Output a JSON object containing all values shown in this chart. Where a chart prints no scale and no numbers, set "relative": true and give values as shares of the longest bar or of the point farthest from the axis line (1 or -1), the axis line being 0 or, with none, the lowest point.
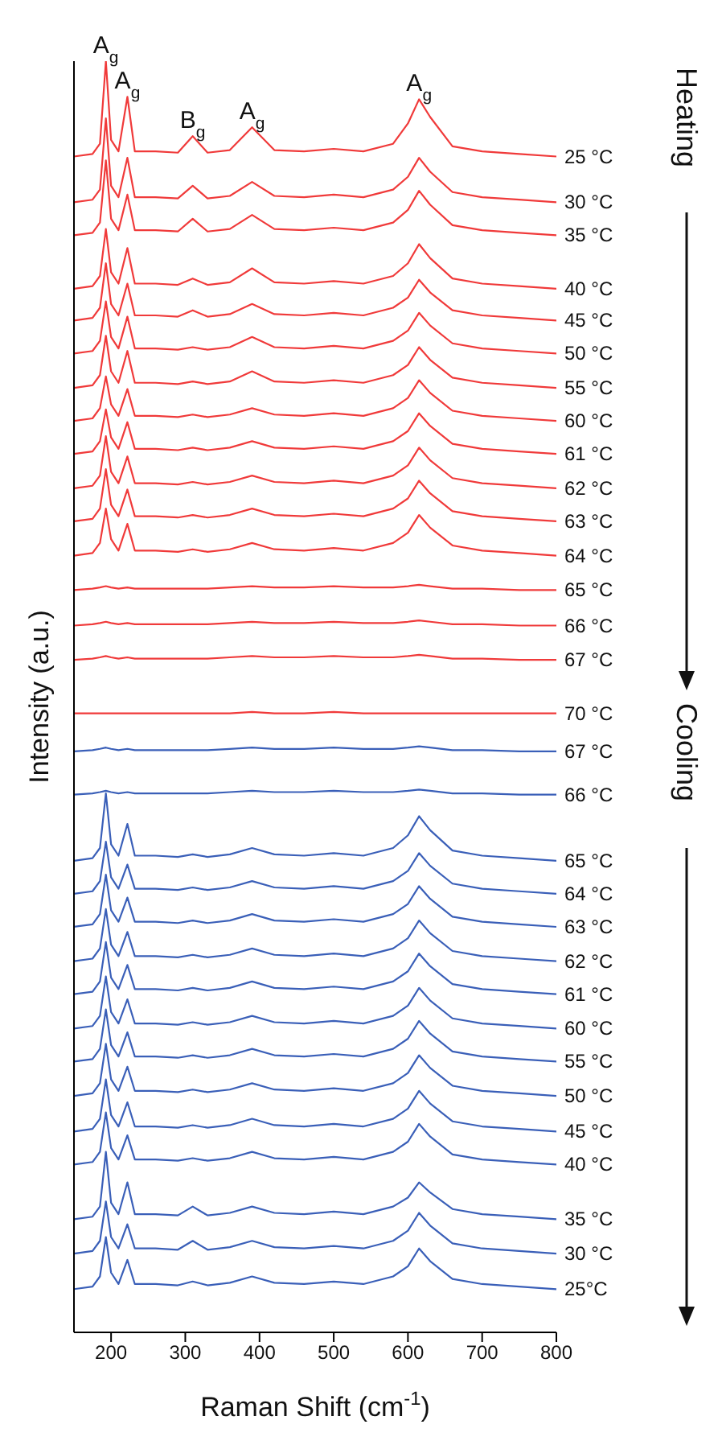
{
  "chart_data": {
    "type": "line",
    "relative": true,
    "xlabel": "Raman Shift (cm$^{-1}$)",
    "ylabel": "Intensity (a.u.)",
    "xlim": [
      150,
      800
    ],
    "xticks": [
      200,
      300,
      400,
      500,
      600,
      700,
      800
    ],
    "legend": false,
    "grid": false,
    "marker": "none",
    "line_style": "solid",
    "x": [
      150,
      175,
      185,
      193,
      200,
      210,
      222,
      232,
      260,
      290,
      310,
      330,
      360,
      390,
      420,
      460,
      500,
      540,
      580,
      600,
      615,
      630,
      660,
      700,
      750,
      800
    ],
    "annotations": [
      {
        "text": "A$_{g}$",
        "x": 193,
        "y": 1.0
      },
      {
        "text": "A$_{g}$",
        "x": 222,
        "y": 0.972
      },
      {
        "text": "B$_{g}$",
        "x": 310,
        "y": 0.941
      },
      {
        "text": "A$_{g}$",
        "x": 390,
        "y": 0.948
      },
      {
        "text": "A$_{g}$",
        "x": 615,
        "y": 0.97
      },
      "Heating",
      "Cooling"
    ],
    "series": [
      {
        "name": "25 °C",
        "color": "#f03a3a",
        "values": [
          0.925,
          0.927,
          0.935,
          1.0,
          0.938,
          0.929,
          0.972,
          0.929,
          0.929,
          0.928,
          0.941,
          0.928,
          0.93,
          0.948,
          0.93,
          0.929,
          0.931,
          0.929,
          0.935,
          0.951,
          0.97,
          0.956,
          0.933,
          0.929,
          0.927,
          0.925
        ]
      },
      {
        "name": "30 °C",
        "color": "#f03a3a",
        "values": [
          0.889,
          0.891,
          0.899,
          0.955,
          0.902,
          0.893,
          0.924,
          0.893,
          0.893,
          0.892,
          0.902,
          0.892,
          0.894,
          0.905,
          0.894,
          0.893,
          0.895,
          0.893,
          0.899,
          0.909,
          0.924,
          0.913,
          0.897,
          0.893,
          0.891,
          0.889
        ]
      },
      {
        "name": "35 °C",
        "color": "#f03a3a",
        "values": [
          0.863,
          0.865,
          0.873,
          0.922,
          0.876,
          0.867,
          0.895,
          0.867,
          0.867,
          0.866,
          0.876,
          0.866,
          0.868,
          0.879,
          0.868,
          0.867,
          0.869,
          0.867,
          0.873,
          0.883,
          0.898,
          0.887,
          0.871,
          0.867,
          0.865,
          0.863
        ]
      },
      {
        "name": "40 °C",
        "color": "#f03a3a",
        "values": [
          0.821,
          0.823,
          0.831,
          0.868,
          0.834,
          0.825,
          0.853,
          0.825,
          0.825,
          0.824,
          0.829,
          0.824,
          0.826,
          0.837,
          0.826,
          0.825,
          0.827,
          0.825,
          0.831,
          0.841,
          0.856,
          0.845,
          0.829,
          0.825,
          0.823,
          0.821
        ]
      },
      {
        "name": "45 °C",
        "color": "#f03a3a",
        "values": [
          0.796,
          0.798,
          0.806,
          0.841,
          0.809,
          0.8,
          0.825,
          0.8,
          0.8,
          0.799,
          0.804,
          0.799,
          0.801,
          0.809,
          0.801,
          0.8,
          0.802,
          0.8,
          0.806,
          0.814,
          0.828,
          0.818,
          0.804,
          0.8,
          0.798,
          0.796
        ]
      },
      {
        "name": "50 °C",
        "color": "#f03a3a",
        "values": [
          0.77,
          0.772,
          0.78,
          0.811,
          0.783,
          0.774,
          0.799,
          0.774,
          0.774,
          0.773,
          0.775,
          0.773,
          0.775,
          0.783,
          0.775,
          0.774,
          0.776,
          0.774,
          0.78,
          0.788,
          0.802,
          0.792,
          0.778,
          0.774,
          0.772,
          0.77
        ]
      },
      {
        "name": "55 °C",
        "color": "#f03a3a",
        "values": [
          0.743,
          0.745,
          0.753,
          0.784,
          0.756,
          0.747,
          0.772,
          0.747,
          0.747,
          0.746,
          0.748,
          0.746,
          0.748,
          0.756,
          0.748,
          0.747,
          0.749,
          0.747,
          0.753,
          0.761,
          0.775,
          0.765,
          0.751,
          0.747,
          0.745,
          0.743
        ]
      },
      {
        "name": "60 °C",
        "color": "#f03a3a",
        "values": [
          0.717,
          0.719,
          0.727,
          0.752,
          0.73,
          0.721,
          0.742,
          0.721,
          0.721,
          0.72,
          0.722,
          0.72,
          0.722,
          0.727,
          0.722,
          0.721,
          0.723,
          0.721,
          0.727,
          0.735,
          0.749,
          0.739,
          0.725,
          0.721,
          0.719,
          0.717
        ]
      },
      {
        "name": "61 °C",
        "color": "#f03a3a",
        "values": [
          0.691,
          0.693,
          0.701,
          0.726,
          0.704,
          0.695,
          0.716,
          0.695,
          0.695,
          0.694,
          0.696,
          0.694,
          0.696,
          0.701,
          0.696,
          0.695,
          0.697,
          0.695,
          0.701,
          0.709,
          0.723,
          0.713,
          0.699,
          0.695,
          0.693,
          0.691
        ]
      },
      {
        "name": "62 °C",
        "color": "#f03a3a",
        "values": [
          0.664,
          0.666,
          0.674,
          0.705,
          0.677,
          0.668,
          0.689,
          0.668,
          0.668,
          0.667,
          0.669,
          0.667,
          0.669,
          0.674,
          0.669,
          0.668,
          0.67,
          0.668,
          0.674,
          0.682,
          0.696,
          0.686,
          0.672,
          0.668,
          0.666,
          0.664
        ]
      },
      {
        "name": "63 °C",
        "color": "#f03a3a",
        "values": [
          0.638,
          0.64,
          0.648,
          0.679,
          0.651,
          0.642,
          0.663,
          0.642,
          0.642,
          0.641,
          0.643,
          0.641,
          0.643,
          0.648,
          0.643,
          0.642,
          0.644,
          0.642,
          0.648,
          0.656,
          0.67,
          0.66,
          0.646,
          0.642,
          0.64,
          0.638
        ]
      },
      {
        "name": "64 °C",
        "color": "#f03a3a",
        "values": [
          0.611,
          0.613,
          0.621,
          0.648,
          0.624,
          0.615,
          0.636,
          0.615,
          0.615,
          0.614,
          0.616,
          0.614,
          0.616,
          0.621,
          0.616,
          0.615,
          0.617,
          0.615,
          0.621,
          0.629,
          0.643,
          0.633,
          0.619,
          0.615,
          0.613,
          0.611
        ]
      },
      {
        "name": "65 °C",
        "color": "#f03a3a",
        "values": [
          0.584,
          0.585,
          0.586,
          0.587,
          0.586,
          0.585,
          0.586,
          0.585,
          0.585,
          0.585,
          0.585,
          0.585,
          0.586,
          0.587,
          0.586,
          0.586,
          0.587,
          0.586,
          0.586,
          0.587,
          0.588,
          0.587,
          0.585,
          0.585,
          0.584,
          0.584
        ]
      },
      {
        "name": "66 °C",
        "color": "#f03a3a",
        "values": [
          0.556,
          0.557,
          0.558,
          0.559,
          0.558,
          0.557,
          0.558,
          0.557,
          0.557,
          0.557,
          0.557,
          0.557,
          0.558,
          0.559,
          0.558,
          0.558,
          0.559,
          0.558,
          0.558,
          0.559,
          0.56,
          0.559,
          0.557,
          0.557,
          0.556,
          0.556
        ]
      },
      {
        "name": "67 °C",
        "color": "#f03a3a",
        "values": [
          0.529,
          0.53,
          0.531,
          0.532,
          0.531,
          0.53,
          0.531,
          0.53,
          0.53,
          0.53,
          0.53,
          0.53,
          0.531,
          0.532,
          0.531,
          0.531,
          0.532,
          0.531,
          0.531,
          0.532,
          0.533,
          0.532,
          0.53,
          0.53,
          0.529,
          0.529
        ]
      },
      {
        "name": "70 °C",
        "color": "#f03a3a",
        "values": [
          0.487,
          0.487,
          0.487,
          0.487,
          0.487,
          0.487,
          0.487,
          0.487,
          0.487,
          0.487,
          0.487,
          0.487,
          0.487,
          0.488,
          0.487,
          0.487,
          0.488,
          0.487,
          0.487,
          0.487,
          0.487,
          0.487,
          0.487,
          0.487,
          0.487,
          0.487
        ]
      },
      {
        "name": "67 °C",
        "color": "#3a5fb8",
        "values": [
          0.457,
          0.458,
          0.459,
          0.46,
          0.459,
          0.458,
          0.459,
          0.458,
          0.458,
          0.458,
          0.458,
          0.458,
          0.459,
          0.46,
          0.459,
          0.459,
          0.46,
          0.459,
          0.459,
          0.46,
          0.461,
          0.46,
          0.458,
          0.458,
          0.457,
          0.457
        ]
      },
      {
        "name": "66 °C",
        "color": "#3a5fb8",
        "values": [
          0.423,
          0.424,
          0.425,
          0.426,
          0.425,
          0.424,
          0.425,
          0.424,
          0.424,
          0.424,
          0.424,
          0.424,
          0.425,
          0.426,
          0.425,
          0.425,
          0.426,
          0.425,
          0.425,
          0.426,
          0.427,
          0.426,
          0.424,
          0.424,
          0.423,
          0.423
        ]
      },
      {
        "name": "65 °C",
        "color": "#3a5fb8",
        "values": [
          0.371,
          0.373,
          0.381,
          0.424,
          0.384,
          0.375,
          0.4,
          0.375,
          0.375,
          0.374,
          0.376,
          0.374,
          0.376,
          0.381,
          0.376,
          0.375,
          0.377,
          0.375,
          0.381,
          0.391,
          0.406,
          0.395,
          0.379,
          0.375,
          0.373,
          0.371
        ]
      },
      {
        "name": "64 °C",
        "color": "#3a5fb8",
        "values": [
          0.345,
          0.347,
          0.355,
          0.386,
          0.358,
          0.349,
          0.368,
          0.349,
          0.349,
          0.348,
          0.35,
          0.348,
          0.35,
          0.355,
          0.35,
          0.349,
          0.351,
          0.349,
          0.355,
          0.363,
          0.377,
          0.367,
          0.353,
          0.349,
          0.347,
          0.345
        ]
      },
      {
        "name": "63 °C",
        "color": "#3a5fb8",
        "values": [
          0.319,
          0.321,
          0.329,
          0.36,
          0.332,
          0.323,
          0.342,
          0.323,
          0.323,
          0.322,
          0.324,
          0.322,
          0.324,
          0.329,
          0.324,
          0.323,
          0.325,
          0.323,
          0.329,
          0.337,
          0.351,
          0.341,
          0.327,
          0.323,
          0.321,
          0.319
        ]
      },
      {
        "name": "62 °C",
        "color": "#3a5fb8",
        "values": [
          0.292,
          0.294,
          0.302,
          0.333,
          0.305,
          0.296,
          0.315,
          0.296,
          0.296,
          0.295,
          0.297,
          0.295,
          0.297,
          0.302,
          0.297,
          0.296,
          0.298,
          0.296,
          0.302,
          0.31,
          0.324,
          0.314,
          0.3,
          0.296,
          0.294,
          0.292
        ]
      },
      {
        "name": "61 °C",
        "color": "#3a5fb8",
        "values": [
          0.266,
          0.268,
          0.276,
          0.307,
          0.279,
          0.27,
          0.289,
          0.27,
          0.27,
          0.269,
          0.271,
          0.269,
          0.271,
          0.276,
          0.271,
          0.27,
          0.272,
          0.27,
          0.276,
          0.284,
          0.298,
          0.288,
          0.274,
          0.27,
          0.268,
          0.266
        ]
      },
      {
        "name": "60 °C",
        "color": "#3a5fb8",
        "values": [
          0.239,
          0.241,
          0.249,
          0.28,
          0.252,
          0.243,
          0.262,
          0.243,
          0.243,
          0.242,
          0.244,
          0.242,
          0.244,
          0.249,
          0.244,
          0.243,
          0.245,
          0.243,
          0.249,
          0.257,
          0.271,
          0.261,
          0.247,
          0.243,
          0.241,
          0.239
        ]
      },
      {
        "name": "55 °C",
        "color": "#3a5fb8",
        "values": [
          0.213,
          0.215,
          0.223,
          0.254,
          0.226,
          0.217,
          0.236,
          0.217,
          0.217,
          0.216,
          0.218,
          0.216,
          0.218,
          0.223,
          0.218,
          0.217,
          0.219,
          0.217,
          0.223,
          0.231,
          0.245,
          0.235,
          0.221,
          0.217,
          0.215,
          0.213
        ]
      },
      {
        "name": "50 °C",
        "color": "#3a5fb8",
        "values": [
          0.186,
          0.188,
          0.196,
          0.227,
          0.199,
          0.19,
          0.209,
          0.19,
          0.19,
          0.189,
          0.191,
          0.189,
          0.191,
          0.196,
          0.191,
          0.19,
          0.192,
          0.19,
          0.196,
          0.204,
          0.218,
          0.208,
          0.194,
          0.19,
          0.188,
          0.186
        ]
      },
      {
        "name": "45 °C",
        "color": "#3a5fb8",
        "values": [
          0.158,
          0.16,
          0.168,
          0.199,
          0.171,
          0.162,
          0.181,
          0.162,
          0.162,
          0.161,
          0.163,
          0.161,
          0.163,
          0.168,
          0.163,
          0.162,
          0.164,
          0.162,
          0.168,
          0.176,
          0.19,
          0.18,
          0.166,
          0.162,
          0.16,
          0.158
        ]
      },
      {
        "name": "40 °C",
        "color": "#3a5fb8",
        "values": [
          0.132,
          0.134,
          0.142,
          0.173,
          0.145,
          0.136,
          0.155,
          0.136,
          0.136,
          0.135,
          0.137,
          0.135,
          0.137,
          0.142,
          0.137,
          0.136,
          0.138,
          0.136,
          0.142,
          0.15,
          0.164,
          0.154,
          0.14,
          0.136,
          0.134,
          0.132
        ]
      },
      {
        "name": "35 °C",
        "color": "#3a5fb8",
        "values": [
          0.089,
          0.091,
          0.099,
          0.142,
          0.102,
          0.093,
          0.118,
          0.093,
          0.093,
          0.092,
          0.099,
          0.092,
          0.094,
          0.099,
          0.094,
          0.093,
          0.095,
          0.093,
          0.099,
          0.106,
          0.118,
          0.11,
          0.097,
          0.093,
          0.091,
          0.089
        ]
      },
      {
        "name": "30 °C",
        "color": "#3a5fb8",
        "values": [
          0.062,
          0.064,
          0.072,
          0.103,
          0.075,
          0.066,
          0.085,
          0.066,
          0.066,
          0.065,
          0.072,
          0.065,
          0.067,
          0.072,
          0.067,
          0.066,
          0.068,
          0.066,
          0.072,
          0.08,
          0.094,
          0.084,
          0.07,
          0.066,
          0.064,
          0.062
        ]
      },
      {
        "name": "25°C",
        "color": "#3a5fb8",
        "values": [
          0.034,
          0.036,
          0.044,
          0.075,
          0.047,
          0.038,
          0.057,
          0.038,
          0.038,
          0.037,
          0.04,
          0.037,
          0.039,
          0.044,
          0.039,
          0.038,
          0.04,
          0.038,
          0.044,
          0.052,
          0.066,
          0.056,
          0.042,
          0.038,
          0.036,
          0.034
        ]
      }
    ]
  }
}
